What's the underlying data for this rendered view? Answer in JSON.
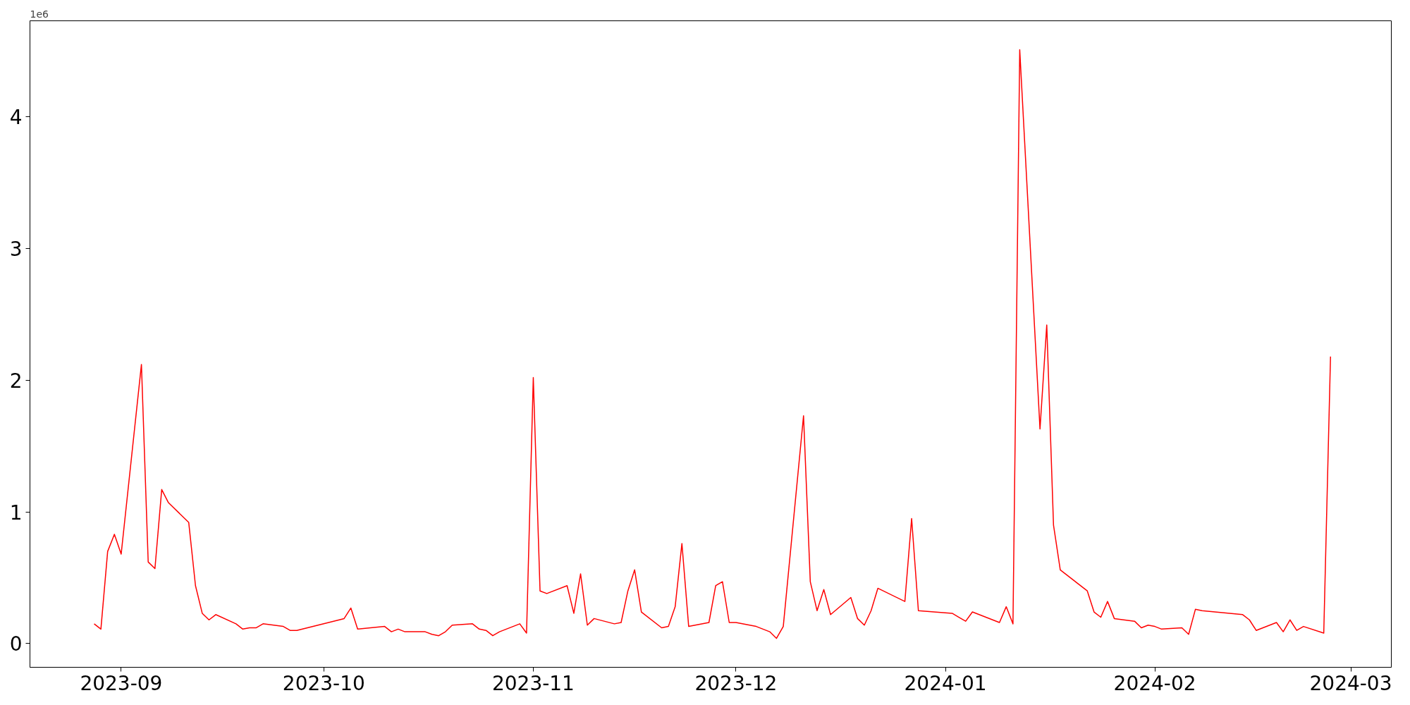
{
  "chart_data": {
    "type": "line",
    "x": [
      "2023-08-28",
      "2023-08-29",
      "2023-08-30",
      "2023-08-31",
      "2023-09-01",
      "2023-09-04",
      "2023-09-05",
      "2023-09-06",
      "2023-09-07",
      "2023-09-08",
      "2023-09-11",
      "2023-09-12",
      "2023-09-13",
      "2023-09-14",
      "2023-09-15",
      "2023-09-18",
      "2023-09-19",
      "2023-09-20",
      "2023-09-21",
      "2023-09-22",
      "2023-09-25",
      "2023-09-26",
      "2023-09-27",
      "2023-10-04",
      "2023-10-05",
      "2023-10-06",
      "2023-10-10",
      "2023-10-11",
      "2023-10-12",
      "2023-10-13",
      "2023-10-16",
      "2023-10-17",
      "2023-10-18",
      "2023-10-19",
      "2023-10-20",
      "2023-10-23",
      "2023-10-24",
      "2023-10-25",
      "2023-10-26",
      "2023-10-27",
      "2023-10-30",
      "2023-10-31",
      "2023-11-01",
      "2023-11-02",
      "2023-11-03",
      "2023-11-06",
      "2023-11-07",
      "2023-11-08",
      "2023-11-09",
      "2023-11-10",
      "2023-11-13",
      "2023-11-14",
      "2023-11-15",
      "2023-11-16",
      "2023-11-17",
      "2023-11-20",
      "2023-11-21",
      "2023-11-22",
      "2023-11-23",
      "2023-11-24",
      "2023-11-27",
      "2023-11-28",
      "2023-11-29",
      "2023-11-30",
      "2023-12-01",
      "2023-12-04",
      "2023-12-05",
      "2023-12-06",
      "2023-12-07",
      "2023-12-08",
      "2023-12-11",
      "2023-12-12",
      "2023-12-13",
      "2023-12-14",
      "2023-12-15",
      "2023-12-18",
      "2023-12-19",
      "2023-12-20",
      "2023-12-21",
      "2023-12-22",
      "2023-12-26",
      "2023-12-27",
      "2023-12-28",
      "2024-01-02",
      "2024-01-03",
      "2024-01-04",
      "2024-01-05",
      "2024-01-09",
      "2024-01-10",
      "2024-01-11",
      "2024-01-12",
      "2024-01-15",
      "2024-01-16",
      "2024-01-17",
      "2024-01-18",
      "2024-01-22",
      "2024-01-23",
      "2024-01-24",
      "2024-01-25",
      "2024-01-26",
      "2024-01-29",
      "2024-01-30",
      "2024-01-31",
      "2024-02-01",
      "2024-02-02",
      "2024-02-05",
      "2024-02-06",
      "2024-02-07",
      "2024-02-08",
      "2024-02-14",
      "2024-02-15",
      "2024-02-16",
      "2024-02-19",
      "2024-02-20",
      "2024-02-21",
      "2024-02-22",
      "2024-02-23",
      "2024-02-26",
      "2024-02-27"
    ],
    "series": [
      {
        "color": "#ff0000",
        "values": [
          0.15,
          0.11,
          0.7,
          0.83,
          0.68,
          2.12,
          0.62,
          0.57,
          1.17,
          1.07,
          0.92,
          0.44,
          0.23,
          0.18,
          0.22,
          0.15,
          0.11,
          0.12,
          0.12,
          0.15,
          0.13,
          0.1,
          0.1,
          0.19,
          0.27,
          0.11,
          0.13,
          0.09,
          0.11,
          0.09,
          0.09,
          0.07,
          0.06,
          0.09,
          0.14,
          0.15,
          0.11,
          0.1,
          0.06,
          0.09,
          0.15,
          0.08,
          2.02,
          0.4,
          0.38,
          0.44,
          0.23,
          0.53,
          0.14,
          0.19,
          0.15,
          0.16,
          0.4,
          0.56,
          0.24,
          0.12,
          0.13,
          0.28,
          0.76,
          0.13,
          0.16,
          0.44,
          0.47,
          0.16,
          0.16,
          0.13,
          0.11,
          0.09,
          0.04,
          0.13,
          1.73,
          0.47,
          0.25,
          0.41,
          0.22,
          0.35,
          0.19,
          0.14,
          0.25,
          0.42,
          0.32,
          0.95,
          0.25,
          0.23,
          0.2,
          0.17,
          0.24,
          0.16,
          0.28,
          0.15,
          4.51,
          1.63,
          2.42,
          0.9,
          0.56,
          0.4,
          0.24,
          0.2,
          0.32,
          0.19,
          0.17,
          0.12,
          0.14,
          0.13,
          0.11,
          0.12,
          0.07,
          0.26,
          0.25,
          0.22,
          0.18,
          0.1,
          0.16,
          0.09,
          0.18,
          0.1,
          0.13,
          0.08,
          2.18
        ]
      }
    ],
    "xlim": [
      "2023-08-18T12:00",
      "2024-03-07"
    ],
    "xticks": [
      {
        "value": "2023-09-01",
        "label": "2023-09"
      },
      {
        "value": "2023-10-01",
        "label": "2023-10"
      },
      {
        "value": "2023-11-01",
        "label": "2023-11"
      },
      {
        "value": "2023-12-01",
        "label": "2023-12"
      },
      {
        "value": "2024-01-01",
        "label": "2024-01"
      },
      {
        "value": "2024-02-01",
        "label": "2024-02"
      },
      {
        "value": "2024-03-01",
        "label": "2024-03"
      }
    ],
    "ylim": [
      -0.18,
      4.73
    ],
    "yticks": [
      0,
      1,
      2,
      3,
      4
    ],
    "annotations": [
      "1e6"
    ],
    "grid": false,
    "marker": "none",
    "line_style": "solid"
  }
}
